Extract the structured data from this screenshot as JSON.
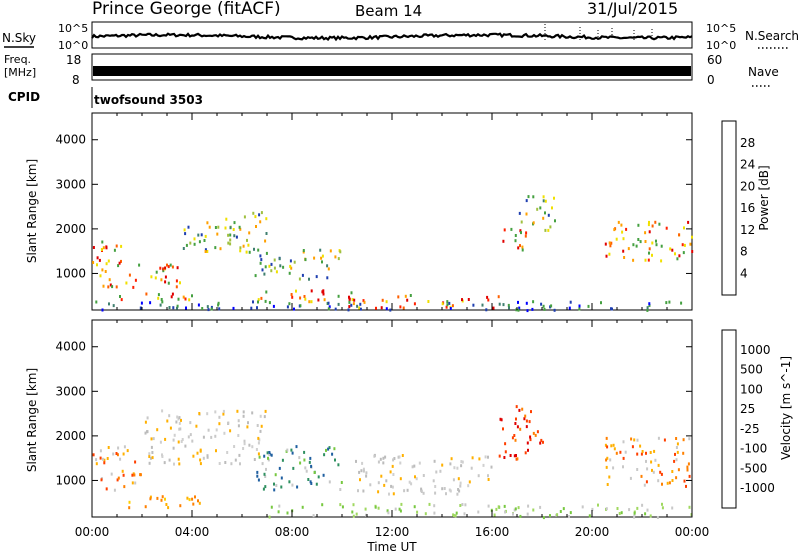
{
  "header": {
    "station": "Prince George (fitACF)",
    "beam": "Beam 14",
    "date": "31/Jul/2015"
  },
  "strip": {
    "nsky_label": "N.Sky",
    "nsearch_label": "N.Search",
    "tick_10e5": "10^5",
    "tick_10e0": "10^0",
    "freq_label_1": "Freq.",
    "freq_label_2": "[MHz]",
    "freq_tick_top": "18",
    "freq_tick_bottom": "8",
    "nave_label": "Nave",
    "nave_tick_top": "60",
    "nave_tick_bottom": "0",
    "cpid_label": "CPID",
    "cpid_value": "twofsound 3503"
  },
  "chart_data": [
    {
      "type": "heatmap",
      "name": "power",
      "ylabel": "Slant Range [km]",
      "xlabel": "",
      "ylim": [
        180,
        4600
      ],
      "xlim_hours": [
        0,
        24
      ],
      "y_ticks": [
        1000,
        2000,
        3000,
        4000
      ],
      "colorbar": {
        "label": "Power [dB]",
        "ticks": [
          "4",
          "8",
          "12",
          "16",
          "20",
          "24",
          "28"
        ],
        "colors": [
          "#0000ff",
          "#1f3fb0",
          "#3f7f6f",
          "#44a040",
          "#a0c040",
          "#f0e000",
          "#ffa000",
          "#ff6000",
          "#ff2000",
          "#e00000"
        ]
      },
      "scatter_regions": [
        {
          "t0": 0.0,
          "t1": 1.6,
          "r0": 1200,
          "r1": 1800,
          "level": "high"
        },
        {
          "t0": 0.2,
          "t1": 3.5,
          "r0": 700,
          "r1": 1300,
          "level": "high"
        },
        {
          "t0": 1.0,
          "t1": 4.5,
          "r0": 400,
          "r1": 600,
          "level": "high"
        },
        {
          "t0": 3.5,
          "t1": 7.0,
          "r0": 1500,
          "r1": 2400,
          "level": "mid"
        },
        {
          "t0": 6.5,
          "t1": 10.0,
          "r0": 900,
          "r1": 1600,
          "level": "mid"
        },
        {
          "t0": 6.5,
          "t1": 10.5,
          "r0": 400,
          "r1": 700,
          "level": "high"
        },
        {
          "t0": 10.0,
          "t1": 16.5,
          "r0": 250,
          "r1": 550,
          "level": "high"
        },
        {
          "t0": 16.3,
          "t1": 17.5,
          "r0": 1500,
          "r1": 2100,
          "level": "high"
        },
        {
          "t0": 17.0,
          "t1": 18.5,
          "r0": 2000,
          "r1": 2800,
          "level": "mid"
        },
        {
          "t0": 20.5,
          "t1": 24.0,
          "r0": 1300,
          "r1": 2200,
          "level": "high"
        },
        {
          "t0": 0.0,
          "t1": 24.0,
          "r0": 200,
          "r1": 400,
          "level": "low"
        }
      ]
    },
    {
      "type": "heatmap",
      "name": "velocity",
      "ylabel": "Slant Range [km]",
      "xlabel": "Time UT",
      "ylim": [
        180,
        4600
      ],
      "xlim_hours": [
        0,
        24
      ],
      "y_ticks": [
        1000,
        2000,
        3000,
        4000
      ],
      "x_ticks": [
        "00:00",
        "04:00",
        "08:00",
        "12:00",
        "16:00",
        "20:00",
        "00:00"
      ],
      "colorbar": {
        "label": "Velocity [m s^-1]",
        "ticks": [
          "1000",
          "500",
          "100",
          "25",
          "-25",
          "-100",
          "-500",
          "-1000"
        ],
        "colors": [
          "#0018d8",
          "#1f5fa0",
          "#2f9060",
          "#77c840",
          "#c8c8c8",
          "#c8c8c8",
          "#ffb000",
          "#ff8000",
          "#ff4000",
          "#e00000"
        ]
      },
      "scatter_regions": [
        {
          "t0": 0.0,
          "t1": 2.0,
          "r0": 800,
          "r1": 1800,
          "level": "neg_mid"
        },
        {
          "t0": 1.0,
          "t1": 4.5,
          "r0": 400,
          "r1": 700,
          "level": "neg_low"
        },
        {
          "t0": 2.0,
          "t1": 7.0,
          "r0": 1400,
          "r1": 2600,
          "level": "zero"
        },
        {
          "t0": 6.5,
          "t1": 10.0,
          "r0": 800,
          "r1": 1800,
          "level": "pos"
        },
        {
          "t0": 7.0,
          "t1": 24.0,
          "r0": 200,
          "r1": 500,
          "level": "pos_low"
        },
        {
          "t0": 16.2,
          "t1": 18.0,
          "r0": 1500,
          "r1": 2700,
          "level": "neg_high"
        },
        {
          "t0": 20.5,
          "t1": 24.0,
          "r0": 900,
          "r1": 2000,
          "level": "neg_mid"
        },
        {
          "t0": 10.5,
          "t1": 16.0,
          "r0": 700,
          "r1": 1600,
          "level": "zero"
        }
      ]
    }
  ]
}
